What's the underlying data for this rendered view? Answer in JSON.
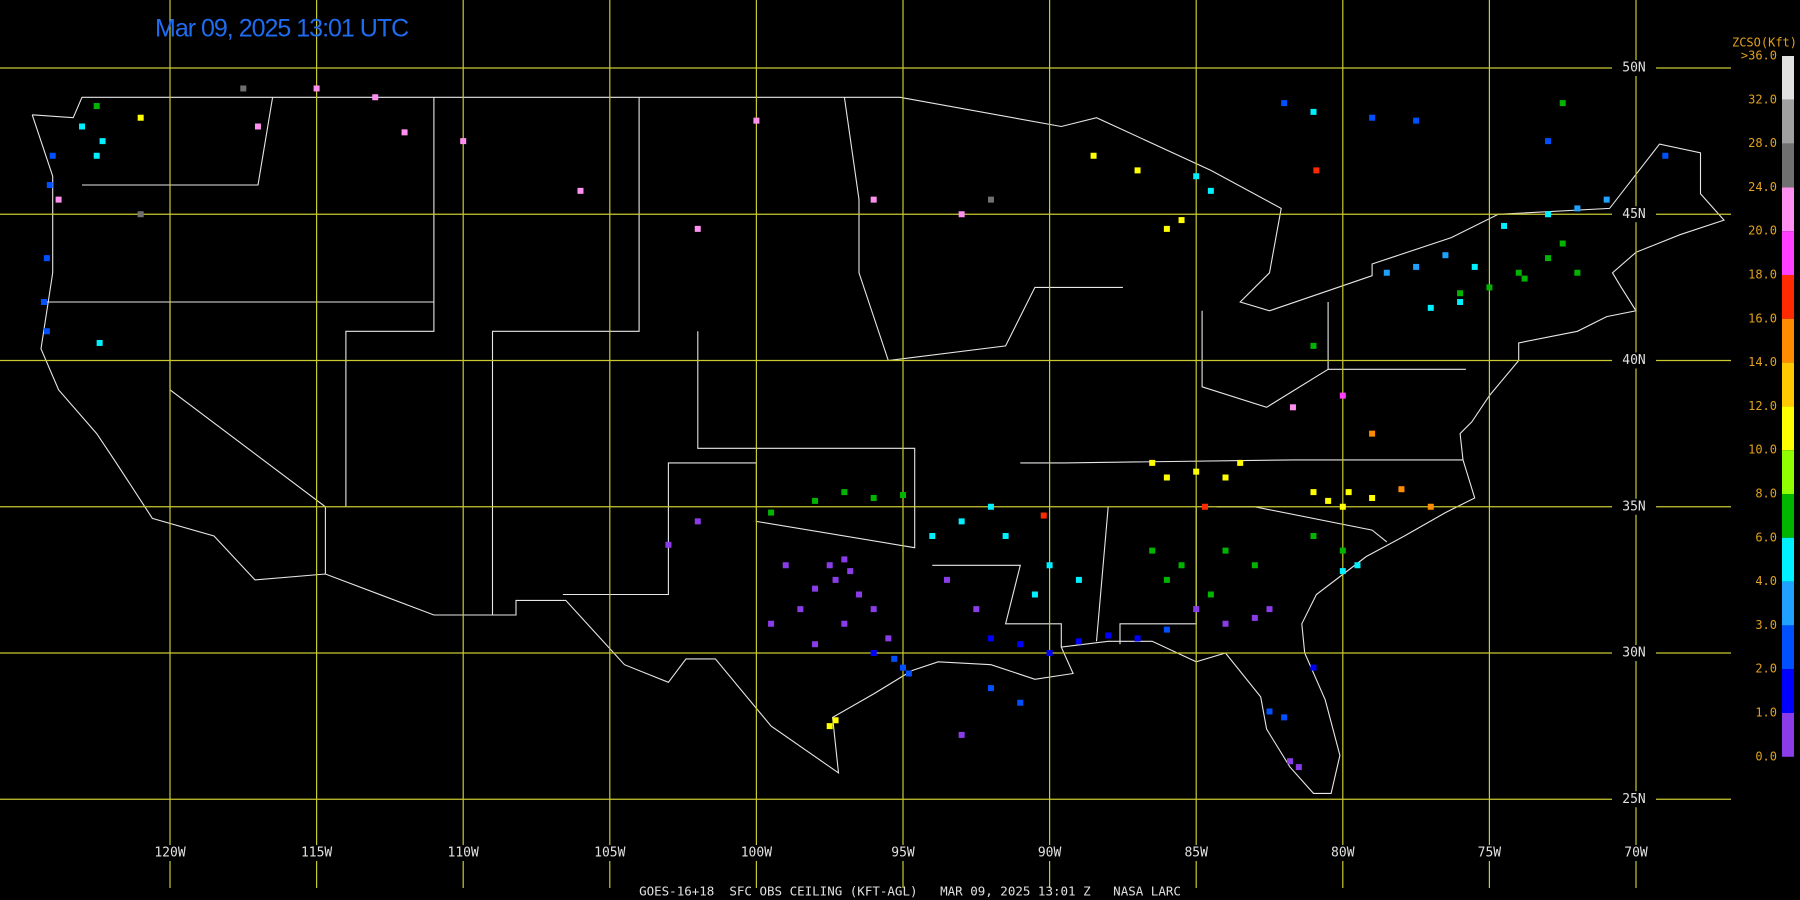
{
  "title": "Mar 09, 2025 13:01 UTC",
  "footer": "GOES-16+18  SFC OBS CEILING (KFT-AGL)   MAR 09, 2025 13:01 Z   NASA LARC",
  "latitudes": [
    {
      "value": 50,
      "label": "50N"
    },
    {
      "value": 45,
      "label": "45N"
    },
    {
      "value": 40,
      "label": "40N"
    },
    {
      "value": 35,
      "label": "35N"
    },
    {
      "value": 30,
      "label": "30N"
    },
    {
      "value": 25,
      "label": "25N"
    }
  ],
  "longitudes": [
    {
      "value": -120,
      "label": "120W"
    },
    {
      "value": -115,
      "label": "115W"
    },
    {
      "value": -110,
      "label": "110W"
    },
    {
      "value": -105,
      "label": "105W"
    },
    {
      "value": -100,
      "label": "100W"
    },
    {
      "value": -95,
      "label": "95W"
    },
    {
      "value": -90,
      "label": "90W"
    },
    {
      "value": -85,
      "label": "85W"
    },
    {
      "value": -80,
      "label": "80W"
    },
    {
      "value": -75,
      "label": "75W"
    },
    {
      "value": -70,
      "label": "70W"
    }
  ],
  "legend": {
    "title": "ZCSO(Kft)",
    "labels": [
      {
        "value": 36,
        "label": ">36.0"
      },
      {
        "value": 32,
        "label": "32.0"
      },
      {
        "value": 28,
        "label": "28.0"
      },
      {
        "value": 24,
        "label": "24.0"
      },
      {
        "value": 20,
        "label": "20.0"
      },
      {
        "value": 18,
        "label": "18.0"
      },
      {
        "value": 16,
        "label": "16.0"
      },
      {
        "value": 14,
        "label": "14.0"
      },
      {
        "value": 12,
        "label": "12.0"
      },
      {
        "value": 10,
        "label": "10.0"
      },
      {
        "value": 8,
        "label": "8.0"
      },
      {
        "value": 6,
        "label": "6.0"
      },
      {
        "value": 4,
        "label": "4.0"
      },
      {
        "value": 3,
        "label": "3.0"
      },
      {
        "value": 2,
        "label": "2.0"
      },
      {
        "value": 1,
        "label": "1.0"
      },
      {
        "value": 0,
        "label": "0.0"
      }
    ],
    "colors": [
      "#e0e0e0",
      "#a0a0a0",
      "#707070",
      "#ff90f0",
      "#ff40ff",
      "#ff2a00",
      "#ff8c00",
      "#ffc800",
      "#ffff00",
      "#90ff00",
      "#00b400",
      "#00f0ff",
      "#20a0ff",
      "#0050ff",
      "#0000ff",
      "#8a3ce8"
    ]
  },
  "stations": {
    "lon": [
      -97.5,
      -97,
      -96.8,
      -97.3,
      -98,
      -96.5,
      -99,
      -98.5,
      -97,
      -96,
      -95.5,
      -98,
      -99.5,
      -95.3,
      -95,
      -94.8,
      -96,
      -92,
      -91,
      -90,
      -89,
      -88,
      -87,
      -93.5,
      -92.5,
      -97.3,
      -97.5,
      -98,
      -97,
      -96,
      -95,
      -99.5,
      -93,
      -92,
      -94,
      -91.5,
      -90,
      -89,
      -90.5,
      -86,
      -85,
      -84,
      -83.5,
      -86.5,
      -86.5,
      -85.5,
      -84,
      -83,
      -86,
      -84.5,
      -84,
      -83,
      -82.5,
      -85,
      -86,
      -82.5,
      -82,
      -81.8,
      -81.5,
      -81,
      -80.5,
      -79.8,
      -79,
      -80,
      -81,
      -81,
      -80,
      -78,
      -77,
      -80,
      -79.5,
      -79,
      -81.7,
      -80,
      -74,
      -73,
      -72.5,
      -72,
      -75,
      -76,
      -73.8,
      -76,
      -77,
      -75.5,
      -74.5,
      -73,
      -76.5,
      -77.5,
      -78.5,
      -72,
      -71,
      -73,
      -69,
      -84.5,
      -85,
      -87,
      -88.5,
      -86,
      -85.5,
      -100,
      -102,
      -96,
      -93,
      -92,
      -110,
      -113,
      -115,
      -117,
      -112,
      -106,
      -122.3,
      -122.5,
      -123,
      -122.5,
      -124,
      -124.1,
      -121,
      -123.8,
      -121,
      -117.5,
      -124.2,
      -124.3,
      -124.2,
      -122.4,
      -102,
      -103,
      -91,
      -92,
      -93,
      -81,
      -81,
      -79,
      -77.5,
      -72.5,
      -82,
      -80.9,
      -90.2,
      -84.7
    ],
    "lat": [
      33,
      33.2,
      32.8,
      32.5,
      32.2,
      32,
      33,
      31.5,
      31,
      31.5,
      30.5,
      30.3,
      31,
      29.8,
      29.5,
      29.3,
      30,
      30.5,
      30.3,
      30,
      30.4,
      30.6,
      30.5,
      32.5,
      31.5,
      27.7,
      27.5,
      35.2,
      35.5,
      35.3,
      35.4,
      34.8,
      34.5,
      35,
      34,
      34,
      33,
      32.5,
      32,
      36,
      36.2,
      36,
      36.5,
      36.5,
      33.5,
      33,
      33.5,
      33,
      32.5,
      32,
      31,
      31.2,
      31.5,
      31.5,
      30.8,
      28,
      27.8,
      26.3,
      26.1,
      29.5,
      35.2,
      35.5,
      35.3,
      35,
      35.5,
      34,
      33.5,
      35.6,
      35,
      32.8,
      33,
      37.5,
      38.4,
      38.8,
      43,
      43.5,
      44,
      43,
      42.5,
      42.3,
      42.8,
      42,
      41.8,
      43.2,
      44.6,
      45,
      43.6,
      43.2,
      43,
      45.2,
      45.5,
      47.5,
      47,
      45.8,
      46.3,
      46.5,
      47,
      44.5,
      44.8,
      48.2,
      44.5,
      45.5,
      45,
      45.5,
      47.5,
      49,
      49.3,
      48,
      47.8,
      45.8,
      47.5,
      47,
      48,
      48.7,
      47,
      46,
      48.3,
      45.5,
      45,
      49.3,
      43.5,
      42,
      41,
      40.6,
      34.5,
      33.7,
      28.3,
      28.8,
      27.2,
      40.5,
      48.5,
      48.3,
      48.2,
      48.8,
      48.8,
      46.5,
      34.7,
      35
    ],
    "ceiling": [
      0.5,
      0.5,
      0.5,
      0.5,
      0.5,
      0.5,
      0.5,
      0.5,
      0.5,
      0.5,
      0.5,
      0.5,
      0.5,
      2.5,
      2.5,
      2.5,
      1.5,
      1.5,
      1.5,
      1.5,
      1.5,
      1.5,
      1.5,
      0.5,
      0.5,
      11,
      11,
      7,
      7,
      7,
      7,
      7,
      5,
      5,
      5,
      5,
      5,
      5,
      5,
      11,
      11,
      11,
      11,
      11,
      7,
      7,
      7,
      7,
      7,
      7,
      0.5,
      0.5,
      0.5,
      0.5,
      2.5,
      2.5,
      2.5,
      0.5,
      0.5,
      1.5,
      11,
      11,
      11,
      11,
      11,
      7,
      7,
      15,
      15,
      5,
      5,
      15,
      22,
      19,
      7,
      7,
      7,
      7,
      7,
      7,
      7,
      5,
      5,
      5,
      5,
      5,
      3.5,
      3.5,
      3.5,
      3.5,
      3.5,
      2.5,
      2.5,
      5,
      5,
      11,
      11,
      11,
      11,
      22,
      22,
      22,
      22,
      26,
      22,
      22,
      22,
      22,
      22,
      22,
      5,
      5,
      5,
      7,
      2.5,
      2.5,
      11,
      22,
      26,
      26,
      2.5,
      2.5,
      2.5,
      5,
      0.5,
      0.5,
      2.5,
      2.5,
      0.5,
      7,
      5,
      2.5,
      2.5,
      7,
      2.5,
      17,
      17,
      17
    ]
  }
}
